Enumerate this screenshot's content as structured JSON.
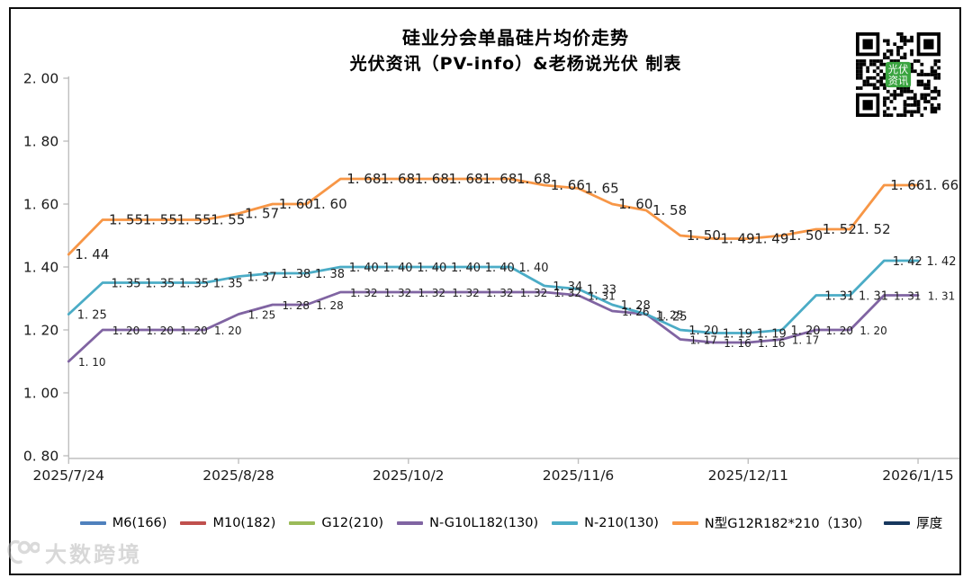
{
  "title": "硅业分会单晶硅片均价走势",
  "subtitle": "光伏资讯（PV-info）&老杨说光伏 制表",
  "watermark_text": "大数跨境",
  "qr": {
    "center_label_line1": "光伏",
    "center_label_line2": "资讯",
    "center_color": "#3aa440"
  },
  "chart_data": {
    "type": "line",
    "title": "硅业分会单晶硅片均价走势",
    "subtitle": "光伏资讯（PV-info）&老杨说光伏 制表",
    "grid": false,
    "legend_position": "bottom",
    "axis_color": "#bfbfbf",
    "ylim": [
      0.8,
      2.0
    ],
    "y_ticks": [
      0.8,
      1.0,
      1.2,
      1.4,
      1.6,
      1.8,
      2.0
    ],
    "n_points": 26,
    "x_tick_indices": [
      0,
      5,
      10,
      15,
      20,
      25
    ],
    "x_tick_labels": [
      "2025/7/24",
      "2025/8/28",
      "2025/10/2",
      "2025/11/6",
      "2025/12/11",
      "2026/1/15"
    ],
    "legend": [
      {
        "label": "M6(166)",
        "color": "#4f81bd"
      },
      {
        "label": "M10(182)",
        "color": "#c0504d"
      },
      {
        "label": "G12(210)",
        "color": "#9bbb59"
      },
      {
        "label": "N-G10L182(130)",
        "color": "#8064a2"
      },
      {
        "label": "N-210(130)",
        "color": "#4bacc6"
      },
      {
        "label": "N型G12R182*210（130）",
        "color": "#f79646"
      },
      {
        "label": "厚度",
        "color": "#17375e"
      }
    ],
    "series": [
      {
        "name": "N-G10L182(130)",
        "color": "#8064a2",
        "values": [
          1.1,
          1.2,
          1.2,
          1.2,
          1.2,
          1.25,
          1.28,
          1.28,
          1.32,
          1.32,
          1.32,
          1.32,
          1.32,
          1.32,
          1.32,
          1.31,
          1.26,
          1.25,
          1.17,
          1.16,
          1.16,
          1.17,
          1.2,
          1.2,
          1.31,
          1.31
        ]
      },
      {
        "name": "N-210(130)",
        "color": "#4bacc6",
        "values": [
          1.25,
          1.35,
          1.35,
          1.35,
          1.35,
          1.37,
          1.38,
          1.38,
          1.4,
          1.4,
          1.4,
          1.4,
          1.4,
          1.4,
          1.34,
          1.33,
          1.28,
          1.25,
          1.2,
          1.19,
          1.19,
          1.2,
          1.31,
          1.31,
          1.42,
          1.42
        ]
      },
      {
        "name": "N型G12R182*210（130）",
        "color": "#f79646",
        "values": [
          1.44,
          1.55,
          1.55,
          1.55,
          1.55,
          1.57,
          1.6,
          1.6,
          1.68,
          1.68,
          1.68,
          1.68,
          1.68,
          1.68,
          1.66,
          1.65,
          1.6,
          1.58,
          1.5,
          1.49,
          1.49,
          1.5,
          1.52,
          1.52,
          1.66,
          1.66
        ]
      }
    ]
  }
}
